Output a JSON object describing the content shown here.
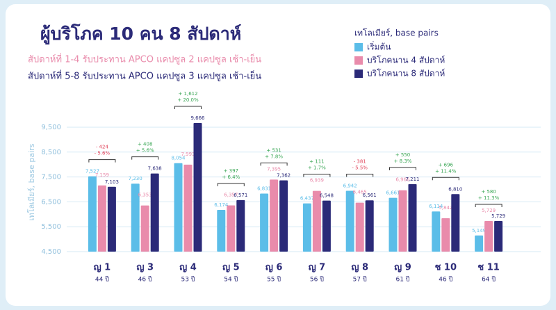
{
  "chart_data": {
    "type": "bar",
    "title": "ผู้บริโภค 10 คน 8 สัปดาห์",
    "subtitle_lines": [
      "สัปดาห์ที่ 1-4  รับประทาน APCO แคปซูล  2  แคปซูล  เช้า-เย็น",
      "สัปดาห์ที่ 5-8  รับประทาน APCO แคปซูล  3  แคปซูล  เช้า-เย็น"
    ],
    "legend_title": "เทโลเมียร์, base pairs",
    "y_label": "เทโลเมียร์, base pairs",
    "categories": [
      "ญ 1",
      "ญ 3",
      "ญ 4",
      "ญ 5",
      "ญ 6",
      "ญ 7",
      "ญ 8",
      "ญ 9",
      "ช 10",
      "ช 11"
    ],
    "ages": [
      "44 ปี",
      "46 ปี",
      "53 ปี",
      "54 ปี",
      "55 ปี",
      "56 ปี",
      "57 ปี",
      "61 ปี",
      "46 ปี",
      "64 ปี"
    ],
    "series": [
      {
        "name": "เริ่มต้น",
        "color": "#5bbde8",
        "values": [
          7527,
          7230,
          8054,
          6174,
          6831,
          6437,
          6942,
          6661,
          6114,
          5149
        ],
        "value_labels": [
          "7,527",
          "7,230",
          "8,054",
          "6,174",
          "6,831",
          "6,437",
          "6,942",
          "6,661",
          "6,114",
          "5,149"
        ]
      },
      {
        "name": "บริโภคนาน 4 สัปดาห์",
        "color": "#e98bab",
        "values": [
          7159,
          6353,
          7993,
          6357,
          7395,
          6939,
          6465,
          6966,
          5842,
          5729
        ],
        "value_labels": [
          "7,159",
          "6,353",
          "7,993",
          "6,357",
          "7,395",
          "6,939",
          "6,465",
          "6,966",
          "5,842",
          "5,729"
        ]
      },
      {
        "name": "บริโภคนาน 8 สัปดาห์",
        "color": "#2b2a78",
        "values": [
          7103,
          7638,
          9666,
          6571,
          7362,
          6548,
          6561,
          7211,
          6810,
          5729
        ],
        "value_labels": [
          "7,103",
          "7,638",
          "9,666",
          "6,571",
          "7,362",
          "6,548",
          "6,561",
          "7,211",
          "6,810",
          "5,729"
        ]
      }
    ],
    "annotations": [
      {
        "change": "- 424",
        "percent": "- 5.6%",
        "color": "#e0435a"
      },
      {
        "change": "+ 408",
        "percent": "+ 5.6%",
        "color": "#3aa655"
      },
      {
        "change": "+ 1,612",
        "percent": "+ 20.0%",
        "color": "#3aa655"
      },
      {
        "change": "+ 397",
        "percent": "+ 6.4%",
        "color": "#3aa655"
      },
      {
        "change": "+ 531",
        "percent": "+ 7.8%",
        "color": "#3aa655"
      },
      {
        "change": "+ 111",
        "percent": "+ 1.7%",
        "color": "#3aa655"
      },
      {
        "change": "- 381",
        "percent": "- 5.5%",
        "color": "#e0435a"
      },
      {
        "change": "+ 550",
        "percent": "+ 8.3%",
        "color": "#3aa655"
      },
      {
        "change": "+ 696",
        "percent": "+ 11.4%",
        "color": "#3aa655"
      },
      {
        "change": "+ 580",
        "percent": "+ 11.3%",
        "color": "#3aa655"
      }
    ],
    "ylim": [
      4500,
      10700
    ],
    "yticks": [
      {
        "value": 4500,
        "label": "4,500"
      },
      {
        "value": 5500,
        "label": "5,500"
      },
      {
        "value": 6500,
        "label": "6,500"
      },
      {
        "value": 7500,
        "label": "7,500"
      },
      {
        "value": 8500,
        "label": "8,500"
      },
      {
        "value": 9500,
        "label": "9,500"
      }
    ],
    "grid": true
  }
}
